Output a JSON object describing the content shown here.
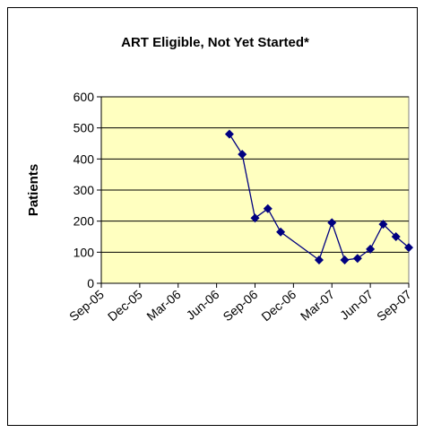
{
  "chart_data": {
    "type": "line",
    "title": "ART Eligible, Not Yet Started*",
    "y_label": "Patients",
    "x": [
      "Jul-06",
      "Aug-06",
      "Sep-06",
      "Oct-06",
      "Nov-06",
      "Feb-07",
      "Mar-07",
      "Apr-07",
      "May-07",
      "Jun-07",
      "Jul-07",
      "Aug-07",
      "Sep-07"
    ],
    "series": [
      {
        "name": "Patients",
        "color": "#000080",
        "values": [
          480,
          415,
          210,
          240,
          165,
          75,
          195,
          75,
          80,
          110,
          190,
          150,
          115
        ]
      }
    ],
    "xlim": [
      "Sep-05",
      "Sep-07"
    ],
    "xticks": [
      "Sep-05",
      "Dec-05",
      "Mar-06",
      "Jun-06",
      "Sep-06",
      "Dec-06",
      "Mar-07",
      "Jun-07",
      "Sep-07"
    ],
    "ylim": [
      0,
      600
    ],
    "yticks": [
      0,
      100,
      200,
      300,
      400,
      500,
      600
    ],
    "grid": true,
    "plot_background": "#ffffc0"
  }
}
